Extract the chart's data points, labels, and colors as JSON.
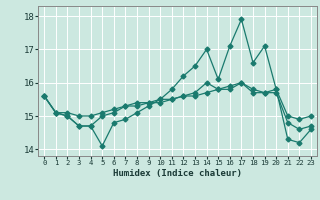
{
  "xlabel": "Humidex (Indice chaleur)",
  "bg_color": "#cce8e0",
  "grid_color": "#ffffff",
  "line_color": "#1a7a6e",
  "xlim": [
    -0.5,
    23.5
  ],
  "ylim": [
    13.8,
    18.3
  ],
  "yticks": [
    14,
    15,
    16,
    17,
    18
  ],
  "xticks": [
    0,
    1,
    2,
    3,
    4,
    5,
    6,
    7,
    8,
    9,
    10,
    11,
    12,
    13,
    14,
    15,
    16,
    17,
    18,
    19,
    20,
    21,
    22,
    23
  ],
  "series": [
    [
      15.6,
      15.1,
      15.0,
      14.7,
      14.7,
      14.1,
      14.8,
      14.9,
      15.1,
      15.3,
      15.5,
      15.8,
      16.2,
      16.5,
      17.0,
      16.1,
      17.1,
      17.9,
      16.6,
      17.1,
      15.8,
      14.3,
      14.2,
      14.6
    ],
    [
      15.6,
      15.1,
      15.1,
      15.0,
      15.0,
      15.1,
      15.2,
      15.3,
      15.3,
      15.4,
      15.4,
      15.5,
      15.6,
      15.6,
      15.7,
      15.8,
      15.9,
      16.0,
      15.7,
      15.7,
      15.8,
      15.0,
      14.9,
      15.0
    ],
    [
      15.6,
      15.1,
      15.0,
      14.7,
      14.7,
      15.0,
      15.1,
      15.3,
      15.4,
      15.4,
      15.5,
      15.5,
      15.6,
      15.7,
      16.0,
      15.8,
      15.8,
      16.0,
      15.8,
      15.7,
      15.7,
      14.8,
      14.6,
      14.7
    ]
  ],
  "markersize": 2.5,
  "linewidth": 0.9
}
